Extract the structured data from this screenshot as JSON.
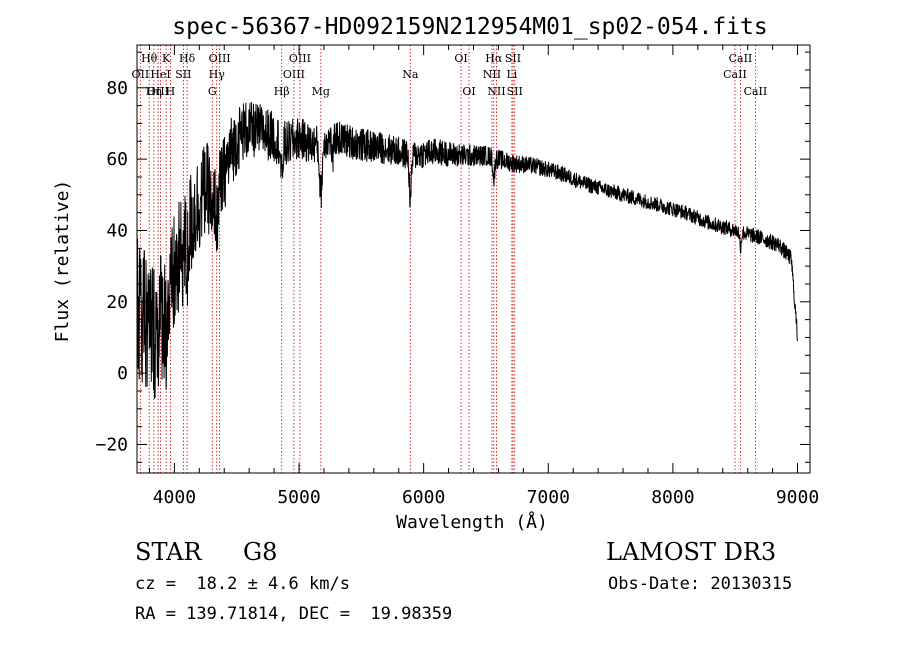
{
  "chart_data": {
    "type": "line",
    "title": "spec-56367-HD092159N212954M01_sp02-054.fits",
    "xlabel": "Wavelength (Å)",
    "ylabel": "Flux (relative)",
    "xlim": [
      3700,
      9100
    ],
    "ylim": [
      -28,
      92
    ],
    "xticks": [
      4000,
      5000,
      6000,
      7000,
      8000,
      9000
    ],
    "yticks": [
      -20,
      0,
      20,
      40,
      60,
      80
    ],
    "grid": false,
    "line_color": "#000000",
    "marker_color": "#cc0000",
    "spectral_lines": [
      {
        "label": "Hθ",
        "wave": 3798,
        "row": 0
      },
      {
        "label": "OII",
        "wave": 3727,
        "row": 1
      },
      {
        "label": "OIII",
        "wave": 3869,
        "row": 2
      },
      {
        "label": "Hη",
        "wave": 3835,
        "row": 2
      },
      {
        "label": "K",
        "wave": 3934,
        "row": 0
      },
      {
        "label": "HeI",
        "wave": 3889,
        "row": 1
      },
      {
        "label": "H",
        "wave": 3968,
        "row": 2
      },
      {
        "label": "Hδ",
        "wave": 4102,
        "row": 0
      },
      {
        "label": "SII",
        "wave": 4072,
        "row": 1
      },
      {
        "label": "OIII",
        "wave": 4363,
        "row": 0
      },
      {
        "label": "Hγ",
        "wave": 4340,
        "row": 1
      },
      {
        "label": "G",
        "wave": 4304,
        "row": 2
      },
      {
        "label": "Hβ",
        "wave": 4861,
        "row": 2
      },
      {
        "label": "OIII",
        "wave": 5007,
        "row": 0
      },
      {
        "label": "OIII",
        "wave": 4959,
        "row": 1
      },
      {
        "label": "Mg",
        "wave": 5175,
        "row": 2
      },
      {
        "label": "Na",
        "wave": 5893,
        "row": 1
      },
      {
        "label": "OI",
        "wave": 6300,
        "row": 0
      },
      {
        "label": "OI",
        "wave": 6364,
        "row": 2
      },
      {
        "label": "Hα",
        "wave": 6563,
        "row": 0
      },
      {
        "label": "NII",
        "wave": 6548,
        "row": 1
      },
      {
        "label": "NII",
        "wave": 6584,
        "row": 2
      },
      {
        "label": "SII",
        "wave": 6717,
        "row": 0
      },
      {
        "label": "Li",
        "wave": 6708,
        "row": 1
      },
      {
        "label": "SII",
        "wave": 6731,
        "row": 2
      },
      {
        "label": "CaII",
        "wave": 8542,
        "row": 0
      },
      {
        "label": "CaII",
        "wave": 8498,
        "row": 1
      },
      {
        "label": "CaII",
        "wave": 8662,
        "row": 2
      }
    ],
    "continuum": [
      [
        3700,
        20
      ],
      [
        3760,
        14
      ],
      [
        3850,
        12
      ],
      [
        3950,
        22
      ],
      [
        4050,
        32
      ],
      [
        4150,
        44
      ],
      [
        4250,
        52
      ],
      [
        4350,
        50
      ],
      [
        4450,
        62
      ],
      [
        4550,
        68
      ],
      [
        4700,
        68
      ],
      [
        4900,
        64
      ],
      [
        5000,
        66
      ],
      [
        5100,
        64
      ],
      [
        5300,
        66
      ],
      [
        5500,
        64
      ],
      [
        5700,
        63
      ],
      [
        5900,
        61
      ],
      [
        6100,
        62
      ],
      [
        6300,
        61
      ],
      [
        6500,
        61
      ],
      [
        6700,
        59
      ],
      [
        6900,
        58
      ],
      [
        7100,
        56
      ],
      [
        7300,
        53
      ],
      [
        7500,
        51
      ],
      [
        7700,
        49
      ],
      [
        7900,
        47
      ],
      [
        8100,
        45
      ],
      [
        8300,
        42
      ],
      [
        8500,
        40
      ],
      [
        8700,
        38
      ],
      [
        8850,
        36
      ],
      [
        8950,
        32
      ],
      [
        9000,
        10
      ]
    ],
    "absorption_features": [
      [
        3934,
        14,
        -8
      ],
      [
        3968,
        14,
        -4
      ],
      [
        4102,
        12,
        -8
      ],
      [
        4304,
        14,
        -10
      ],
      [
        4340,
        10,
        -8
      ],
      [
        4861,
        12,
        -10
      ],
      [
        5175,
        16,
        -14
      ],
      [
        5270,
        10,
        -6
      ],
      [
        5893,
        12,
        -12
      ],
      [
        6563,
        10,
        -6
      ],
      [
        8542,
        10,
        -4
      ]
    ],
    "noise_amplitude": [
      [
        3700,
        22
      ],
      [
        4000,
        18
      ],
      [
        4300,
        12
      ],
      [
        4600,
        8
      ],
      [
        5200,
        5
      ],
      [
        6000,
        4
      ],
      [
        6500,
        2.8
      ],
      [
        7000,
        2.2
      ],
      [
        8000,
        2.0
      ],
      [
        9000,
        2.2
      ]
    ]
  },
  "info": {
    "object_class": "STAR",
    "subclass": "G8",
    "survey": "LAMOST DR3",
    "redshift": "cz =  18.2 ± 4.6 km/s",
    "obs_date": "Obs-Date: 20130315",
    "coords": "RA = 139.71814, DEC =  19.98359"
  }
}
